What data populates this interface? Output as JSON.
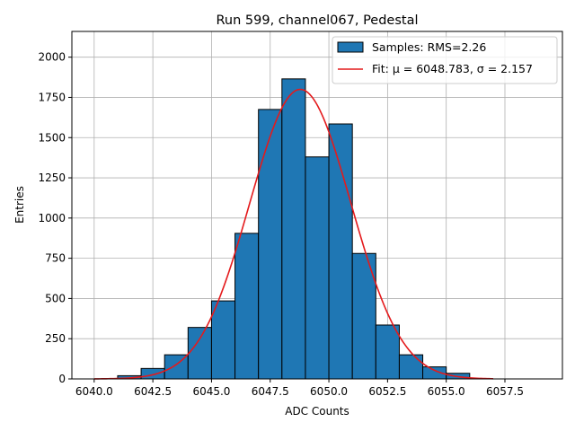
{
  "chart_data": {
    "type": "bar",
    "title": "Run 599, channel067, Pedestal",
    "xlabel": "ADC Counts",
    "ylabel": "Entries",
    "xlim": [
      6039.05,
      6059.95
    ],
    "ylim": [
      0,
      2160
    ],
    "grid": true,
    "legend_position": "top-right",
    "xticks": [
      6040.0,
      6042.5,
      6045.0,
      6047.5,
      6050.0,
      6052.5,
      6055.0,
      6057.5
    ],
    "xtick_labels": [
      "6040.0",
      "6042.5",
      "6045.0",
      "6047.5",
      "6050.0",
      "6052.5",
      "6055.0",
      "6057.5"
    ],
    "yticks": [
      0,
      250,
      500,
      750,
      1000,
      1250,
      1500,
      1750,
      2000
    ],
    "ytick_labels": [
      "0",
      "250",
      "500",
      "750",
      "1000",
      "1250",
      "1500",
      "1750",
      "2000"
    ],
    "bin_width": 1,
    "bins": [
      {
        "x": 6041,
        "value": 20
      },
      {
        "x": 6042,
        "value": 65
      },
      {
        "x": 6043,
        "value": 150
      },
      {
        "x": 6044,
        "value": 320
      },
      {
        "x": 6045,
        "value": 485
      },
      {
        "x": 6046,
        "value": 905
      },
      {
        "x": 6047,
        "value": 1675
      },
      {
        "x": 6048,
        "value": 1865
      },
      {
        "x": 6049,
        "value": 1380
      },
      {
        "x": 6050,
        "value": 1585
      },
      {
        "x": 6051,
        "value": 780
      },
      {
        "x": 6052,
        "value": 335
      },
      {
        "x": 6053,
        "value": 150
      },
      {
        "x": 6054,
        "value": 75
      },
      {
        "x": 6055,
        "value": 35
      }
    ],
    "fit": {
      "mu": 6048.783,
      "sigma": 2.157,
      "amplitude": 1800,
      "x_start": 6040.0,
      "x_end": 6057.0
    },
    "series": [
      {
        "name": "Samples: RMS=2.26",
        "kind": "histogram",
        "color": "#1f77b4"
      },
      {
        "name": "Fit: μ = 6048.783, σ = 2.157",
        "kind": "line",
        "color": "#e41a1c"
      }
    ]
  }
}
